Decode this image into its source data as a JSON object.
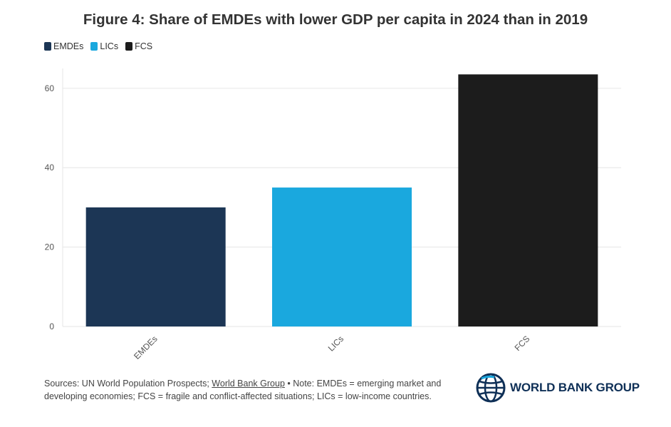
{
  "title": "Figure 4: Share of EMDEs with lower GDP per capita in 2024 than in 2019",
  "legend": [
    {
      "label": "EMDEs",
      "color": "#1c3655"
    },
    {
      "label": "LICs",
      "color": "#1aa8de"
    },
    {
      "label": "FCS",
      "color": "#1c1c1c"
    }
  ],
  "chart_data": {
    "type": "bar",
    "categories": [
      "EMDEs",
      "LICs",
      "FCS"
    ],
    "values": [
      30,
      35,
      63.5
    ],
    "colors": [
      "#1c3655",
      "#1aa8de",
      "#1c1c1c"
    ],
    "title": "Figure 4: Share of EMDEs with lower GDP per capita in 2024 than in 2019",
    "xlabel": "",
    "ylabel": "",
    "ylim": [
      0,
      65
    ],
    "yticks": [
      0,
      20,
      40,
      60
    ],
    "grid": true,
    "legend_position": "top-left"
  },
  "footer": {
    "sources_prefix": "Sources: UN World Population Prospects; ",
    "sources_link": "World Bank Group",
    "note": " • Note: EMDEs = emerging market and developing economies; FCS = fragile and conflict-affected situations; LICs = low-income countries."
  },
  "logo": {
    "text": "WORLD BANK GROUP",
    "icon": "globe-icon"
  }
}
